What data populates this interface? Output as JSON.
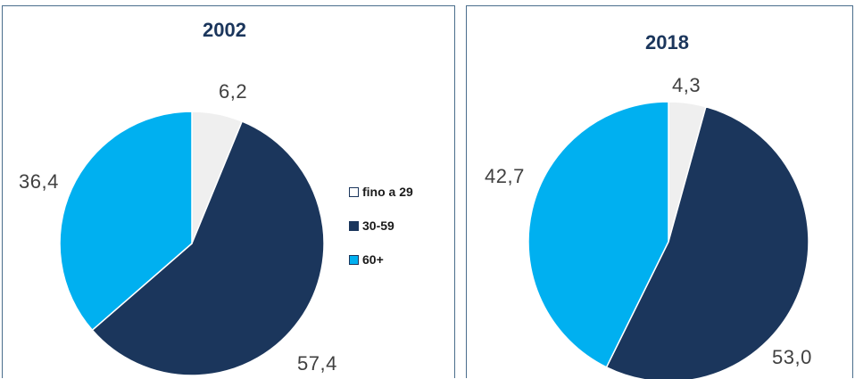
{
  "chart_data": [
    {
      "type": "pie",
      "title": "2002",
      "categories": [
        "fino a 29",
        "30-59",
        "60+"
      ],
      "values": [
        6.2,
        57.4,
        36.4
      ],
      "value_labels": [
        "6,2",
        "57,4",
        "36,4"
      ],
      "colors": [
        "#efefef",
        "#1b365c",
        "#00b0f0"
      ],
      "legend": {
        "placement": "right",
        "entries": [
          "fino a 29",
          "30-59",
          "60+"
        ]
      }
    },
    {
      "type": "pie",
      "title": "2018",
      "categories": [
        "fino a 29",
        "30-59",
        "60+"
      ],
      "values": [
        4.3,
        53.0,
        42.7
      ],
      "value_labels": [
        "4,3",
        "53,0",
        "42,7"
      ],
      "colors": [
        "#efefef",
        "#1b365c",
        "#00b0f0"
      ]
    }
  ],
  "legend": {
    "items": [
      {
        "label": "fino a 29",
        "color": "#ffffff"
      },
      {
        "label": "30-59",
        "color": "#1b365c"
      },
      {
        "label": "60+",
        "color": "#00b0f0"
      }
    ]
  }
}
